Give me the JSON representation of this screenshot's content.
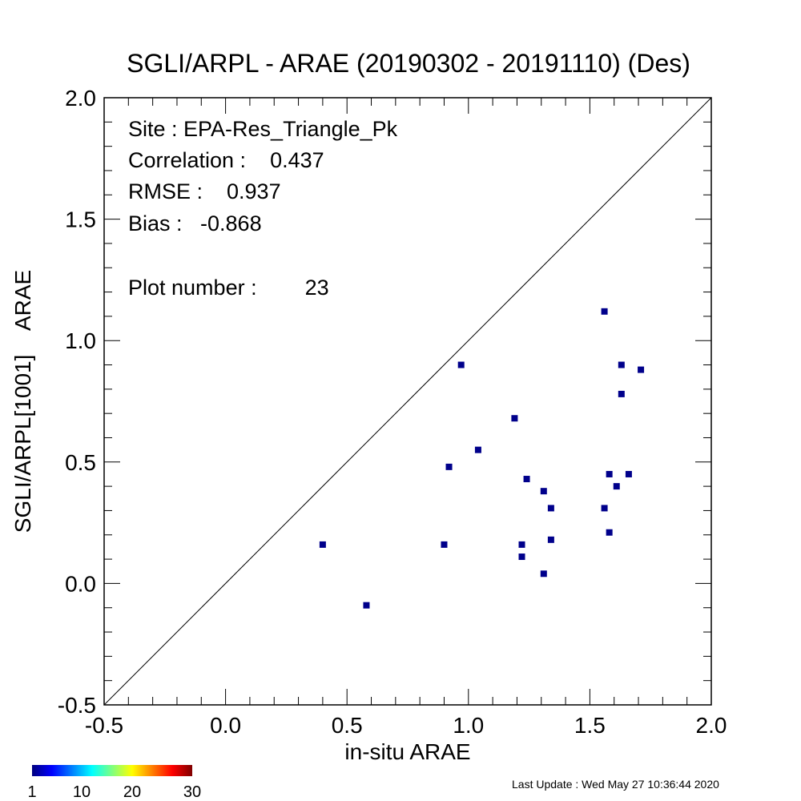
{
  "chart_data": {
    "type": "scatter",
    "title": "SGLI/ARPL - ARAE (20190302 - 20191110) (Des)",
    "xlabel": "in-situ ARAE",
    "ylabel": "SGLI/ARPL[1001]    ARAE",
    "xlim": [
      -0.5,
      2.0
    ],
    "ylim": [
      -0.5,
      2.0
    ],
    "x_ticks": [
      "-0.5",
      "0.0",
      "0.5",
      "1.0",
      "1.5",
      "2.0"
    ],
    "y_ticks": [
      "-0.5",
      "0.0",
      "0.5",
      "1.0",
      "1.5",
      "2.0"
    ],
    "one_to_one_line": true,
    "grid": false,
    "point_color": "#00008b",
    "points": [
      {
        "x": 0.4,
        "y": 0.16
      },
      {
        "x": 0.58,
        "y": -0.09
      },
      {
        "x": 0.9,
        "y": 0.16
      },
      {
        "x": 0.92,
        "y": 0.48
      },
      {
        "x": 0.97,
        "y": 0.9
      },
      {
        "x": 1.04,
        "y": 0.55
      },
      {
        "x": 1.19,
        "y": 0.68
      },
      {
        "x": 1.22,
        "y": 0.16
      },
      {
        "x": 1.22,
        "y": 0.11
      },
      {
        "x": 1.24,
        "y": 0.43
      },
      {
        "x": 1.31,
        "y": 0.38
      },
      {
        "x": 1.31,
        "y": 0.04
      },
      {
        "x": 1.34,
        "y": 0.31
      },
      {
        "x": 1.34,
        "y": 0.18
      },
      {
        "x": 1.56,
        "y": 1.12
      },
      {
        "x": 1.56,
        "y": 0.31
      },
      {
        "x": 1.58,
        "y": 0.45
      },
      {
        "x": 1.58,
        "y": 0.21
      },
      {
        "x": 1.61,
        "y": 0.4
      },
      {
        "x": 1.63,
        "y": 0.9
      },
      {
        "x": 1.63,
        "y": 0.78
      },
      {
        "x": 1.66,
        "y": 0.45
      },
      {
        "x": 1.71,
        "y": 0.88
      }
    ],
    "stats": {
      "site": "Site : EPA-Res_Triangle_Pk",
      "correlation": "Correlation :    0.437",
      "rmse": "RMSE :    0.937",
      "bias": "Bias :   -0.868",
      "plot_number": "Plot number :        23"
    },
    "colorbar": {
      "ticks": [
        "1",
        "10",
        "20",
        "30"
      ],
      "colors": [
        "#00007f",
        "#0000ff",
        "#007fff",
        "#00ffff",
        "#7fff7f",
        "#ffff00",
        "#ff7f00",
        "#ff0000",
        "#7f0000"
      ]
    }
  },
  "footer": {
    "last_update": "Last Update : Wed May 27 10:36:44 2020"
  }
}
